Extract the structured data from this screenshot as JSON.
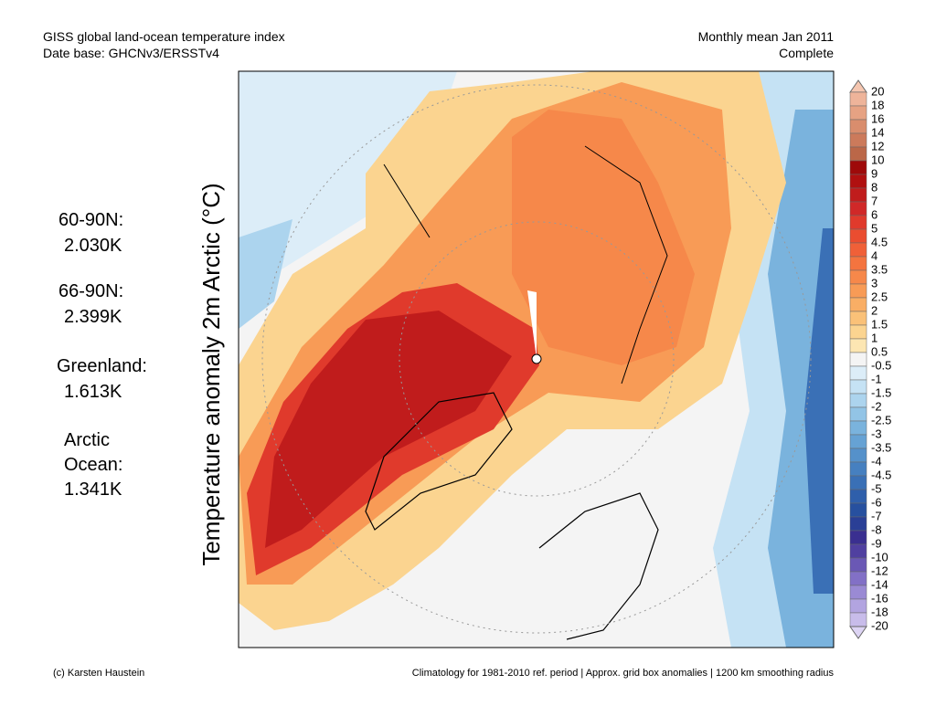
{
  "header": {
    "left": [
      "GISS global land-ocean temperature index",
      "Date base: GHCNv3/ERSSTv4"
    ],
    "right": [
      "Monthly mean Jan 2011",
      "Complete"
    ]
  },
  "y_label": "Temperature anomaly 2m Arctic (°C)",
  "stats": [
    {
      "label": [
        "60-90N:"
      ],
      "value": "2.030K"
    },
    {
      "label": [
        "66-90N:"
      ],
      "value": "2.399K"
    },
    {
      "label": [
        "Greenland:"
      ],
      "value": "1.613K"
    },
    {
      "label": [
        "Arctic",
        "Ocean:"
      ],
      "value": "1.341K"
    }
  ],
  "colorbar": {
    "labels": [
      20,
      18,
      16,
      14,
      12,
      10,
      9,
      8,
      7,
      6,
      5,
      4.5,
      4,
      3.5,
      3,
      2.5,
      2,
      1.5,
      1,
      0.5,
      -0.5,
      -1,
      -1.5,
      -2,
      -2.5,
      -3,
      -3.5,
      -4,
      -4.5,
      -5,
      -6,
      -7,
      -8,
      -9,
      -10,
      -12,
      -14,
      -16,
      -18,
      -20
    ],
    "colors": [
      "#f5c6b0",
      "#eeb49a",
      "#e6a283",
      "#d98d6d",
      "#cc7a5b",
      "#bb6748",
      "#9e0a0a",
      "#b01010",
      "#c01c1c",
      "#d02828",
      "#e03a2c",
      "#ea4d30",
      "#f06038",
      "#f4743f",
      "#f6884a",
      "#f89b56",
      "#f9ae65",
      "#fac178",
      "#fbd490",
      "#fce6b2",
      "#f4f4f4",
      "#dcedf8",
      "#c5e2f4",
      "#acd4ee",
      "#92c4e6",
      "#7ab3dd",
      "#66a2d4",
      "#5591ca",
      "#4680c0",
      "#3a70b6",
      "#2f5fab",
      "#27509f",
      "#2a3f96",
      "#3a2f90",
      "#5040a0",
      "#6a58b5",
      "#8270c6",
      "#9a8ad4",
      "#b2a4e0",
      "#c8bcea",
      "#ddd4f4"
    ]
  },
  "footer": {
    "left": "(c) Karsten Haustein",
    "right": "Climatology for 1981-2010 ref. period | Approx. grid box anomalies | 1200 km smoothing radius"
  }
}
